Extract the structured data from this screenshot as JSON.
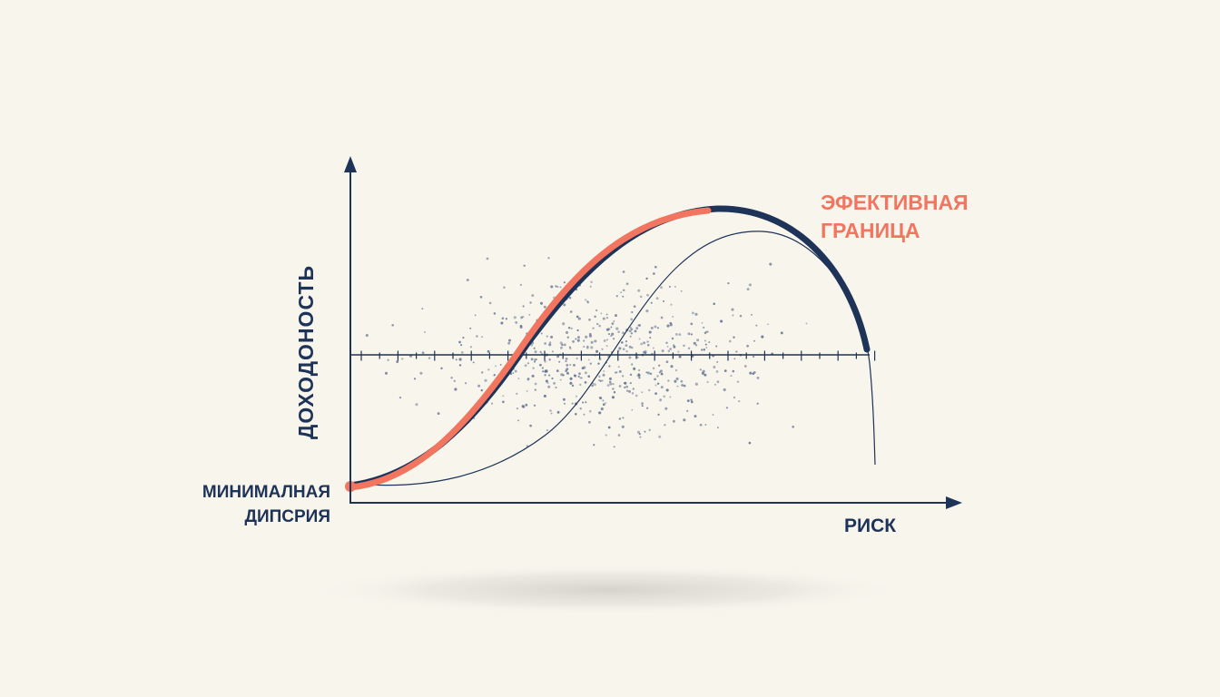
{
  "labels": {
    "y_axis": "ДОХОДОНОСТЬ",
    "x_axis": "РИСК",
    "frontier_line1": "ЭФЕКТИВНАЯ",
    "frontier_line2": "ГРАНИЦА",
    "min_var_line1": "МИНИМАЛНАЯ",
    "min_var_line2": "ДИПСРИЯ"
  },
  "colors": {
    "background": "#f7f5ec",
    "navy": "#1e3358",
    "coral": "#f2755f",
    "dots": "#5a6a8a",
    "shadow": "#d8d6d0"
  }
}
